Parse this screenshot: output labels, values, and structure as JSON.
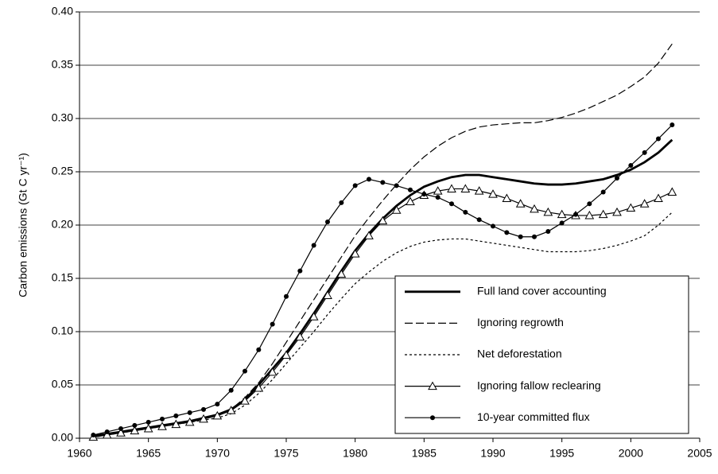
{
  "chart_data": {
    "type": "line",
    "y_label": "Carbon emissions (Gt C yr⁻¹)",
    "x": [
      1961,
      1962,
      1963,
      1964,
      1965,
      1966,
      1967,
      1968,
      1969,
      1970,
      1971,
      1972,
      1973,
      1974,
      1975,
      1976,
      1977,
      1978,
      1979,
      1980,
      1981,
      1982,
      1983,
      1984,
      1985,
      1986,
      1987,
      1988,
      1989,
      1990,
      1991,
      1992,
      1993,
      1994,
      1995,
      1996,
      1997,
      1998,
      1999,
      2000,
      2001,
      2002,
      2003
    ],
    "xlim": [
      1960,
      2005
    ],
    "xticks": [
      1960,
      1965,
      1970,
      1975,
      1980,
      1985,
      1990,
      1995,
      2000,
      2005
    ],
    "ylim": [
      0,
      0.4
    ],
    "yticks": [
      {
        "value": 0,
        "label": "0.00"
      },
      {
        "value": 0.05,
        "label": "0.05"
      },
      {
        "value": 0.1,
        "label": "0.10"
      },
      {
        "value": 0.15,
        "label": "0.15"
      },
      {
        "value": 0.2,
        "label": "0.20"
      },
      {
        "value": 0.25,
        "label": "0.25"
      },
      {
        "value": 0.3,
        "label": "0.30"
      },
      {
        "value": 0.35,
        "label": "0.35"
      },
      {
        "value": 0.4,
        "label": "0.40"
      }
    ],
    "grid": true,
    "legend": "lower right",
    "series": [
      {
        "name": "Full land cover accounting",
        "color": "#000000",
        "style": "thick",
        "marker": "none",
        "values": [
          0.002,
          0.004,
          0.006,
          0.008,
          0.01,
          0.012,
          0.014,
          0.016,
          0.019,
          0.022,
          0.027,
          0.036,
          0.05,
          0.065,
          0.08,
          0.098,
          0.117,
          0.137,
          0.157,
          0.176,
          0.192,
          0.206,
          0.218,
          0.228,
          0.236,
          0.241,
          0.245,
          0.247,
          0.247,
          0.245,
          0.243,
          0.241,
          0.239,
          0.238,
          0.238,
          0.239,
          0.241,
          0.243,
          0.247,
          0.252,
          0.259,
          0.268,
          0.28
        ]
      },
      {
        "name": "Ignoring regrowth",
        "color": "#000000",
        "style": "dashed",
        "marker": "none",
        "values": [
          0.002,
          0.004,
          0.006,
          0.008,
          0.01,
          0.012,
          0.014,
          0.016,
          0.019,
          0.022,
          0.027,
          0.038,
          0.052,
          0.07,
          0.09,
          0.11,
          0.13,
          0.15,
          0.17,
          0.19,
          0.207,
          0.223,
          0.238,
          0.252,
          0.264,
          0.274,
          0.282,
          0.288,
          0.292,
          0.294,
          0.295,
          0.296,
          0.296,
          0.298,
          0.301,
          0.305,
          0.31,
          0.316,
          0.322,
          0.33,
          0.339,
          0.352,
          0.37
        ]
      },
      {
        "name": "Net deforestation",
        "color": "#000000",
        "style": "dotted",
        "marker": "none",
        "values": [
          0.001,
          0.003,
          0.005,
          0.007,
          0.009,
          0.011,
          0.013,
          0.015,
          0.017,
          0.019,
          0.023,
          0.031,
          0.042,
          0.055,
          0.07,
          0.085,
          0.1,
          0.116,
          0.131,
          0.145,
          0.156,
          0.166,
          0.174,
          0.18,
          0.184,
          0.186,
          0.187,
          0.187,
          0.185,
          0.183,
          0.181,
          0.179,
          0.177,
          0.175,
          0.175,
          0.175,
          0.176,
          0.178,
          0.181,
          0.185,
          0.19,
          0.2,
          0.212
        ]
      },
      {
        "name": "Ignoring fallow reclearing",
        "color": "#000000",
        "style": "solid",
        "marker": "triangle",
        "values": [
          0.001,
          0.003,
          0.005,
          0.007,
          0.009,
          0.011,
          0.013,
          0.015,
          0.018,
          0.021,
          0.026,
          0.035,
          0.047,
          0.062,
          0.078,
          0.095,
          0.114,
          0.134,
          0.154,
          0.173,
          0.19,
          0.204,
          0.214,
          0.222,
          0.228,
          0.232,
          0.234,
          0.234,
          0.232,
          0.229,
          0.225,
          0.22,
          0.215,
          0.212,
          0.21,
          0.209,
          0.209,
          0.21,
          0.212,
          0.216,
          0.22,
          0.225,
          0.231
        ]
      },
      {
        "name": "10-year committed flux",
        "color": "#000000",
        "style": "solid",
        "marker": "circle",
        "values": [
          0.003,
          0.006,
          0.009,
          0.012,
          0.015,
          0.018,
          0.021,
          0.024,
          0.027,
          0.032,
          0.045,
          0.063,
          0.083,
          0.107,
          0.133,
          0.157,
          0.181,
          0.203,
          0.221,
          0.237,
          0.243,
          0.24,
          0.237,
          0.233,
          0.229,
          0.226,
          0.22,
          0.212,
          0.205,
          0.199,
          0.193,
          0.189,
          0.189,
          0.194,
          0.202,
          0.21,
          0.22,
          0.231,
          0.244,
          0.256,
          0.268,
          0.281,
          0.294
        ]
      }
    ]
  }
}
